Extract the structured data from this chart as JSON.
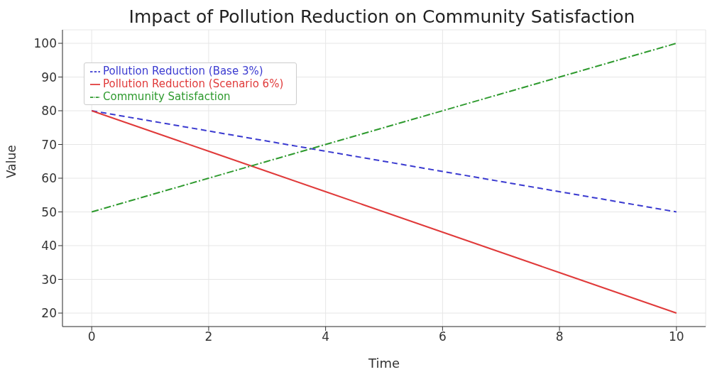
{
  "chart_data": {
    "type": "line",
    "title": "Impact of Pollution Reduction on Community Satisfaction",
    "xlabel": "Time",
    "ylabel": "Value",
    "x": [
      0,
      1,
      2,
      3,
      4,
      5,
      6,
      7,
      8,
      9,
      10
    ],
    "series": [
      {
        "name": "Pollution Reduction (Base 3%)",
        "color": "#3a3ad0",
        "line_style": "dashed",
        "values": [
          80,
          77,
          74,
          71,
          68,
          65,
          62,
          59,
          56,
          53,
          50
        ]
      },
      {
        "name": "Pollution Reduction (Scenario 6%)",
        "color": "#e03a3a",
        "line_style": "solid",
        "values": [
          80,
          74,
          68,
          62,
          56,
          50,
          44,
          38,
          32,
          26,
          20
        ]
      },
      {
        "name": "Community Satisfaction",
        "color": "#2e9a2e",
        "line_style": "dashdot",
        "values": [
          50,
          55,
          60,
          65,
          70,
          75,
          80,
          85,
          90,
          95,
          100
        ]
      }
    ],
    "xlim": [
      -0.5,
      10.5
    ],
    "xticks": [
      0,
      2,
      4,
      6,
      8,
      10
    ],
    "ylim": [
      16,
      104
    ],
    "yticks": [
      20,
      30,
      40,
      50,
      60,
      70,
      80,
      90,
      100
    ],
    "grid": true,
    "legend": "top left",
    "marker": "none"
  }
}
